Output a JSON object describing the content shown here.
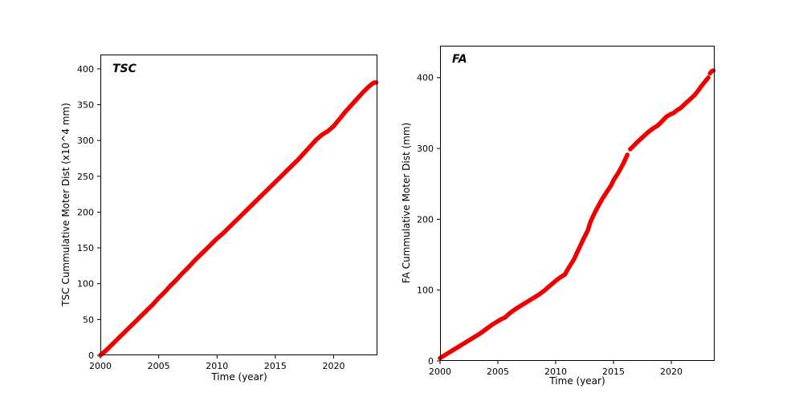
{
  "figure": {
    "background": "#ffffff"
  },
  "chart_data": [
    {
      "type": "scatter",
      "title": "TSC",
      "xlabel": "Time (year)",
      "ylabel": "TSC Cummulative Moter Dist (x10^4 mm)",
      "color": "#ee0000",
      "grid": false,
      "legend": "none",
      "xlim": [
        2000,
        2023.75
      ],
      "ylim": [
        0,
        420
      ],
      "xticks": [
        2000,
        2005,
        2010,
        2015,
        2020
      ],
      "yticks": [
        0,
        50,
        100,
        150,
        200,
        250,
        300,
        350,
        400
      ],
      "segments": [
        [
          [
            2000.0,
            0
          ],
          [
            2000.5,
            7
          ],
          [
            2001.0,
            15
          ],
          [
            2001.5,
            23
          ],
          [
            2002.0,
            31
          ],
          [
            2002.5,
            39
          ],
          [
            2003.0,
            47
          ],
          [
            2003.5,
            55
          ],
          [
            2004.0,
            63
          ],
          [
            2004.5,
            71
          ],
          [
            2005.0,
            80
          ],
          [
            2005.5,
            88
          ],
          [
            2006.0,
            97
          ],
          [
            2006.5,
            105
          ],
          [
            2007.0,
            114
          ],
          [
            2007.5,
            122
          ],
          [
            2008.0,
            131
          ],
          [
            2008.5,
            139
          ],
          [
            2009.0,
            147
          ],
          [
            2009.5,
            155
          ],
          [
            2010.0,
            163
          ],
          [
            2010.5,
            170
          ],
          [
            2011.0,
            178
          ],
          [
            2011.5,
            186
          ],
          [
            2012.0,
            194
          ],
          [
            2012.5,
            202
          ],
          [
            2013.0,
            210
          ],
          [
            2013.5,
            218
          ],
          [
            2014.0,
            226
          ],
          [
            2014.5,
            234
          ],
          [
            2015.0,
            242
          ],
          [
            2015.5,
            250
          ],
          [
            2016.0,
            258
          ],
          [
            2016.5,
            266
          ],
          [
            2017.0,
            274
          ],
          [
            2017.5,
            283
          ],
          [
            2018.0,
            292
          ],
          [
            2018.5,
            301
          ],
          [
            2019.0,
            308
          ],
          [
            2019.5,
            313
          ],
          [
            2020.0,
            320
          ],
          [
            2020.5,
            330
          ],
          [
            2021.0,
            340
          ],
          [
            2021.5,
            349
          ],
          [
            2022.0,
            358
          ],
          [
            2022.5,
            367
          ],
          [
            2023.0,
            375
          ],
          [
            2023.3,
            379
          ],
          [
            2023.5,
            381
          ],
          [
            2023.65,
            381
          ]
        ]
      ]
    },
    {
      "type": "scatter",
      "title": "FA",
      "xlabel": "Time (year)",
      "ylabel": "FA Cummulative Moter Dist (mm)",
      "color": "#ee0000",
      "grid": false,
      "legend": "none",
      "xlim": [
        2000,
        2023.75
      ],
      "ylim": [
        0,
        445
      ],
      "xticks": [
        2000,
        2005,
        2010,
        2015,
        2020
      ],
      "yticks": [
        0,
        100,
        200,
        300,
        400
      ],
      "segments": [
        [
          [
            2000.0,
            4
          ],
          [
            2000.5,
            9
          ],
          [
            2001.0,
            14
          ],
          [
            2001.5,
            19
          ],
          [
            2002.0,
            24
          ],
          [
            2002.5,
            29
          ],
          [
            2003.0,
            34
          ],
          [
            2003.5,
            39
          ],
          [
            2004.0,
            45
          ],
          [
            2004.5,
            51
          ],
          [
            2005.0,
            56
          ],
          [
            2005.3,
            59
          ],
          [
            2005.6,
            61
          ],
          [
            2006.0,
            67
          ],
          [
            2006.5,
            73
          ],
          [
            2007.0,
            78
          ],
          [
            2007.5,
            83
          ],
          [
            2008.0,
            88
          ],
          [
            2008.5,
            93
          ],
          [
            2009.0,
            99
          ],
          [
            2009.5,
            106
          ],
          [
            2010.0,
            113
          ],
          [
            2010.4,
            118
          ],
          [
            2010.8,
            122
          ],
          [
            2011.0,
            128
          ],
          [
            2011.3,
            136
          ],
          [
            2011.6,
            144
          ],
          [
            2012.0,
            158
          ],
          [
            2012.4,
            172
          ],
          [
            2012.8,
            185
          ],
          [
            2013.0,
            196
          ],
          [
            2013.4,
            210
          ],
          [
            2013.8,
            222
          ],
          [
            2014.0,
            228
          ],
          [
            2014.4,
            238
          ],
          [
            2014.8,
            248
          ],
          [
            2015.0,
            255
          ],
          [
            2015.4,
            265
          ],
          [
            2015.8,
            277
          ],
          [
            2016.0,
            284
          ],
          [
            2016.2,
            291
          ]
        ],
        [
          [
            2016.45,
            299
          ],
          [
            2016.7,
            303
          ],
          [
            2017.0,
            308
          ],
          [
            2017.4,
            314
          ],
          [
            2017.8,
            320
          ],
          [
            2018.0,
            323
          ],
          [
            2018.4,
            328
          ],
          [
            2018.8,
            332
          ],
          [
            2019.0,
            335
          ],
          [
            2019.3,
            340
          ],
          [
            2019.6,
            345
          ],
          [
            2019.9,
            348
          ],
          [
            2020.2,
            350
          ],
          [
            2020.5,
            354
          ],
          [
            2020.8,
            357
          ],
          [
            2021.0,
            360
          ],
          [
            2021.4,
            366
          ],
          [
            2021.8,
            372
          ],
          [
            2022.0,
            375
          ],
          [
            2022.3,
            381
          ],
          [
            2022.6,
            388
          ],
          [
            2022.9,
            394
          ],
          [
            2023.1,
            398
          ],
          [
            2023.2,
            400
          ]
        ],
        [
          [
            2023.35,
            406
          ],
          [
            2023.5,
            409
          ],
          [
            2023.65,
            410
          ]
        ]
      ]
    }
  ]
}
